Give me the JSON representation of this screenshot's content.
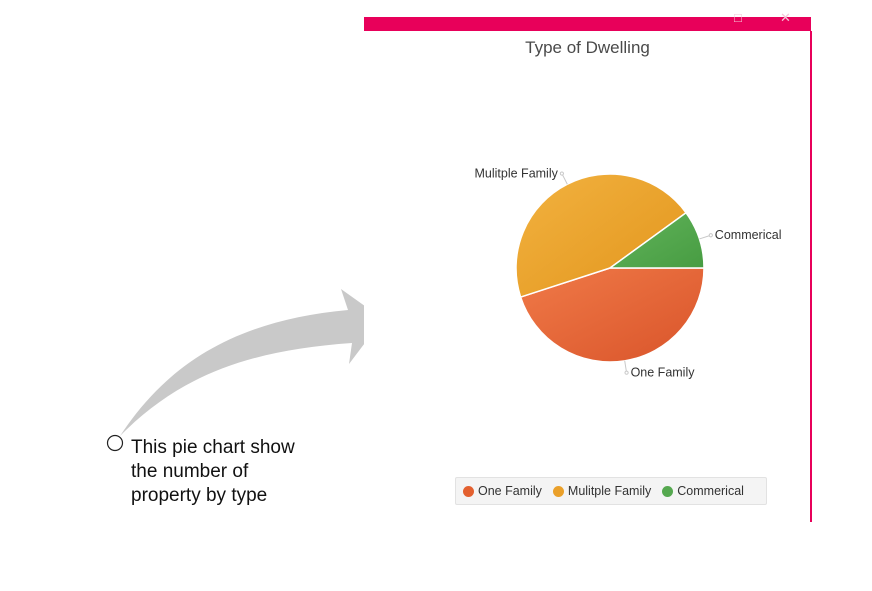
{
  "annotation": {
    "line1": "This pie chart show",
    "line2": "the number of",
    "line3": "property by type"
  },
  "window": {
    "accent_color": "#e8005a",
    "maximize_icon": "maximize-icon",
    "close_icon": "close-icon"
  },
  "chart_data": {
    "type": "pie",
    "title": "Type of Dwelling",
    "labels": [
      "One Family",
      "Mulitple Family",
      "Commerical"
    ],
    "values": [
      45,
      45,
      10
    ],
    "colors": [
      "#e3602f",
      "#eaa02a",
      "#55a84f"
    ],
    "legend_position": "bottom"
  }
}
